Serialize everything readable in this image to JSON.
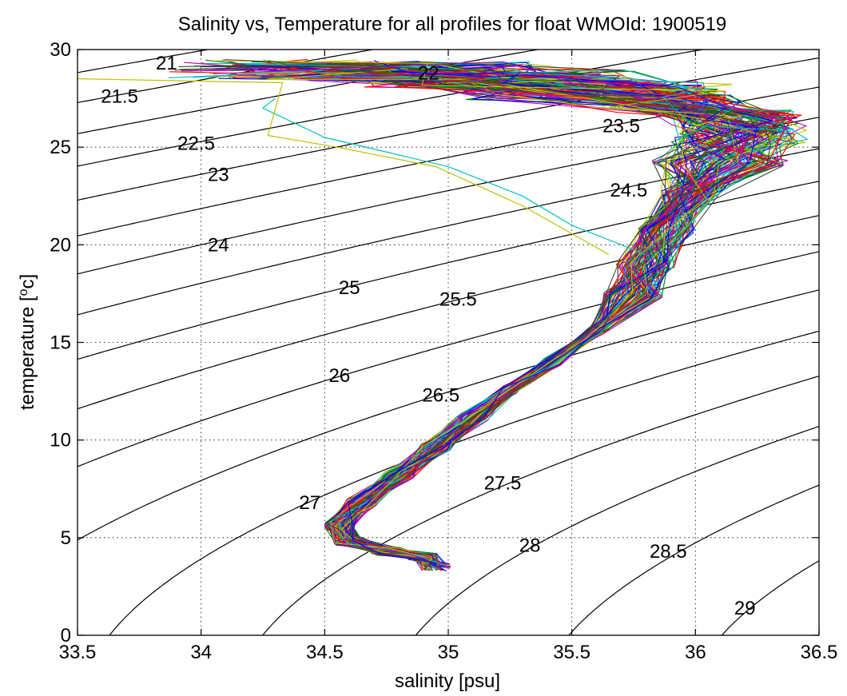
{
  "chart_data": {
    "type": "line",
    "title": "Salinity vs, Temperature for all profiles for float WMOId: 1900519",
    "xlabel": "salinity [psu]",
    "ylabel_main": "temperature [",
    "ylabel_sup": "o",
    "ylabel_end": "c]",
    "xlim": [
      33.5,
      36.5
    ],
    "ylim": [
      0,
      30
    ],
    "xticks": [
      33.5,
      34,
      34.5,
      35,
      35.5,
      36,
      36.5
    ],
    "xtick_labels": [
      "33.5",
      "34",
      "34.5",
      "35",
      "35.5",
      "36",
      "36.5"
    ],
    "yticks": [
      0,
      5,
      10,
      15,
      20,
      25,
      30
    ],
    "ytick_labels": [
      "0",
      "5",
      "10",
      "15",
      "20",
      "25",
      "30"
    ],
    "grid": true,
    "grid_style": "dotted",
    "density_contours": {
      "levels": [
        21,
        21.5,
        22,
        22.5,
        23,
        23.5,
        24,
        24.5,
        25,
        25.5,
        26,
        26.5,
        27,
        27.5,
        28,
        28.5,
        29
      ],
      "labels": [
        {
          "text": "21",
          "s": 33.86,
          "t": 29.3
        },
        {
          "text": "21.5",
          "s": 33.67,
          "t": 27.6
        },
        {
          "text": "22",
          "s": 34.92,
          "t": 28.8
        },
        {
          "text": "22.5",
          "s": 33.98,
          "t": 25.2
        },
        {
          "text": "23",
          "s": 34.07,
          "t": 23.6
        },
        {
          "text": "23.5",
          "s": 35.7,
          "t": 26.1
        },
        {
          "text": "24",
          "s": 34.07,
          "t": 20.0
        },
        {
          "text": "24.5",
          "s": 35.73,
          "t": 22.8
        },
        {
          "text": "25",
          "s": 34.6,
          "t": 17.8
        },
        {
          "text": "25.5",
          "s": 35.04,
          "t": 17.2
        },
        {
          "text": "26",
          "s": 34.56,
          "t": 13.3
        },
        {
          "text": "26.5",
          "s": 34.97,
          "t": 12.3
        },
        {
          "text": "27",
          "s": 34.44,
          "t": 6.8
        },
        {
          "text": "27.5",
          "s": 35.22,
          "t": 7.8
        },
        {
          "text": "28",
          "s": 35.33,
          "t": 4.6
        },
        {
          "text": "28.5",
          "s": 35.89,
          "t": 4.3
        },
        {
          "text": "29",
          "s": 36.2,
          "t": 1.4
        }
      ]
    },
    "profile_colors": [
      "#0000ff",
      "#008000",
      "#ff0000",
      "#00bfbf",
      "#bf00bf",
      "#bfbf00",
      "#404040"
    ],
    "profiles_base": [
      [
        34.95,
        3.5
      ],
      [
        34.9,
        4.0
      ],
      [
        34.75,
        4.3
      ],
      [
        34.6,
        4.8
      ],
      [
        34.56,
        5.6
      ],
      [
        34.65,
        6.8
      ],
      [
        34.8,
        8.2
      ],
      [
        34.95,
        9.6
      ],
      [
        35.1,
        11.2
      ],
      [
        35.25,
        12.6
      ],
      [
        35.42,
        14.0
      ],
      [
        35.6,
        15.6
      ],
      [
        35.75,
        17.4
      ],
      [
        35.8,
        19.0
      ],
      [
        35.88,
        20.8
      ],
      [
        35.98,
        22.6
      ],
      [
        36.1,
        24.2
      ],
      [
        36.18,
        25.6
      ],
      [
        36.15,
        26.4
      ],
      [
        35.9,
        27.2
      ],
      [
        35.6,
        27.9
      ],
      [
        35.2,
        28.5
      ],
      [
        34.8,
        28.9
      ],
      [
        34.4,
        29.0
      ]
    ],
    "profile_count": 120,
    "outlier_profiles": [
      [
        [
          35.8,
          19.5
        ],
        [
          35.5,
          21.0
        ],
        [
          35.3,
          22.5
        ],
        [
          35.0,
          24.0
        ],
        [
          34.5,
          25.5
        ],
        [
          34.25,
          27.0
        ],
        [
          34.3,
          27.5
        ]
      ],
      [
        [
          35.65,
          19.5
        ],
        [
          35.3,
          22.0
        ],
        [
          34.95,
          24.0
        ],
        [
          34.55,
          25.0
        ],
        [
          34.27,
          25.6
        ],
        [
          34.33,
          28.3
        ],
        [
          33.5,
          28.5
        ]
      ]
    ]
  }
}
